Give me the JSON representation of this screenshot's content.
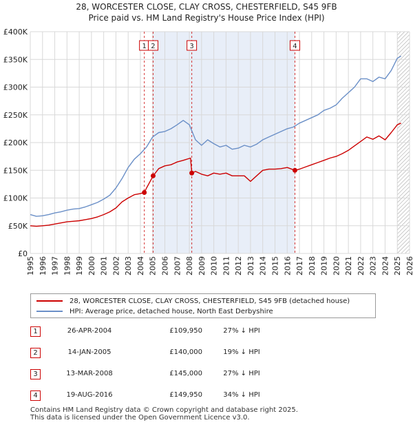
{
  "title_line1": "28, WORCESTER CLOSE, CLAY CROSS, CHESTERFIELD, S45 9FB",
  "title_line2": "Price paid vs. HM Land Registry's House Price Index (HPI)",
  "colors": {
    "property": "#cc0000",
    "hpi": "#6a8fc7",
    "shade": "#e8eef8",
    "marker": "#cc0000",
    "grid": "#d8d8d8"
  },
  "legend": {
    "property_label": "28, WORCESTER CLOSE, CLAY CROSS, CHESTERFIELD, S45 9FB (detached house)",
    "hpi_label": "HPI: Average price, detached house, North East Derbyshire"
  },
  "sales": [
    {
      "num": "1",
      "date": "26-APR-2004",
      "price": "£109,950",
      "hpi": "27% ↓ HPI"
    },
    {
      "num": "2",
      "date": "14-JAN-2005",
      "price": "£140,000",
      "hpi": "19% ↓ HPI"
    },
    {
      "num": "3",
      "date": "13-MAR-2008",
      "price": "£145,000",
      "hpi": "27% ↓ HPI"
    },
    {
      "num": "4",
      "date": "19-AUG-2016",
      "price": "£149,950",
      "hpi": "34% ↓ HPI"
    }
  ],
  "footer_line1": "Contains HM Land Registry data © Crown copyright and database right 2025.",
  "footer_line2": "This data is licensed under the Open Government Licence v3.0.",
  "chart_data": {
    "type": "line",
    "title": "Price paid vs. HM Land Registry's House Price Index (HPI)",
    "xlim": [
      1995,
      2026
    ],
    "ylim": [
      0,
      400000
    ],
    "x_ticks": [
      1995,
      1996,
      1997,
      1998,
      1999,
      2000,
      2001,
      2002,
      2003,
      2004,
      2005,
      2006,
      2007,
      2008,
      2009,
      2010,
      2011,
      2012,
      2013,
      2014,
      2015,
      2016,
      2017,
      2018,
      2019,
      2020,
      2021,
      2022,
      2023,
      2024,
      2025,
      2026
    ],
    "y_ticks": [
      {
        "value": 0,
        "label": "£0"
      },
      {
        "value": 50000,
        "label": "£50K"
      },
      {
        "value": 100000,
        "label": "£100K"
      },
      {
        "value": 150000,
        "label": "£150K"
      },
      {
        "value": 200000,
        "label": "£200K"
      },
      {
        "value": 250000,
        "label": "£250K"
      },
      {
        "value": 300000,
        "label": "£300K"
      },
      {
        "value": 350000,
        "label": "£350K"
      },
      {
        "value": 400000,
        "label": "£400K"
      }
    ],
    "shaded_period": [
      2005.04,
      2016.63
    ],
    "future_hatch_from": 2025.0,
    "sale_markers": [
      {
        "label": "1",
        "x": 2004.32,
        "y": 109950
      },
      {
        "label": "2",
        "x": 2005.04,
        "y": 140000
      },
      {
        "label": "3",
        "x": 2008.2,
        "y": 145000
      },
      {
        "label": "4",
        "x": 2016.63,
        "y": 149950
      }
    ],
    "series": [
      {
        "name": "HPI: Average price, detached house, North East Derbyshire",
        "x": [
          1995,
          1995.5,
          1996,
          1996.5,
          1997,
          1997.5,
          1998,
          1998.5,
          1999,
          1999.5,
          2000,
          2000.5,
          2001,
          2001.5,
          2002,
          2002.5,
          2003,
          2003.5,
          2004,
          2004.5,
          2005,
          2005.5,
          2006,
          2006.5,
          2007,
          2007.5,
          2008,
          2008.5,
          2009,
          2009.5,
          2010,
          2010.5,
          2011,
          2011.5,
          2012,
          2012.5,
          2013,
          2013.5,
          2014,
          2014.5,
          2015,
          2015.5,
          2016,
          2016.5,
          2017,
          2017.5,
          2018,
          2018.5,
          2019,
          2019.5,
          2020,
          2020.5,
          2021,
          2021.5,
          2022,
          2022.5,
          2023,
          2023.5,
          2024,
          2024.5,
          2025,
          2025.3
        ],
        "values": [
          70000,
          67000,
          68000,
          70000,
          73000,
          75000,
          78000,
          80000,
          81000,
          84000,
          88000,
          92000,
          98000,
          105000,
          118000,
          135000,
          155000,
          170000,
          180000,
          192000,
          210000,
          218000,
          220000,
          225000,
          232000,
          240000,
          232000,
          205000,
          195000,
          205000,
          198000,
          192000,
          195000,
          188000,
          190000,
          195000,
          192000,
          197000,
          205000,
          210000,
          215000,
          220000,
          225000,
          228000,
          235000,
          240000,
          245000,
          250000,
          258000,
          262000,
          268000,
          280000,
          290000,
          300000,
          315000,
          315000,
          310000,
          318000,
          315000,
          330000,
          352000,
          356000
        ]
      },
      {
        "name": "28, WORCESTER CLOSE, CLAY CROSS, CHESTERFIELD, S45 9FB (detached house)",
        "x": [
          1995,
          1995.5,
          1996,
          1996.5,
          1997,
          1997.5,
          1998,
          1998.5,
          1999,
          1999.5,
          2000,
          2000.5,
          2001,
          2001.5,
          2002,
          2002.5,
          2003,
          2003.5,
          2004,
          2004.32,
          2004.5,
          2005.04,
          2005.5,
          2006,
          2006.5,
          2007,
          2007.5,
          2008.1,
          2008.2,
          2008.5,
          2009,
          2009.5,
          2010,
          2010.5,
          2011,
          2011.5,
          2012,
          2012.5,
          2013,
          2013.5,
          2014,
          2014.5,
          2015,
          2015.5,
          2016,
          2016.63,
          2017,
          2017.5,
          2018,
          2018.5,
          2019,
          2019.5,
          2020,
          2020.5,
          2021,
          2021.5,
          2022,
          2022.5,
          2023,
          2023.5,
          2024,
          2024.5,
          2025,
          2025.3
        ],
        "values": [
          50000,
          49000,
          50000,
          51000,
          53000,
          55000,
          57000,
          58000,
          59000,
          61000,
          63000,
          66000,
          70000,
          75000,
          82000,
          93000,
          100000,
          106000,
          108000,
          109950,
          118000,
          140000,
          153000,
          158000,
          160000,
          165000,
          168000,
          172000,
          145000,
          148000,
          143000,
          140000,
          145000,
          143000,
          145000,
          140000,
          140000,
          140000,
          130000,
          140000,
          150000,
          152000,
          152000,
          153000,
          155000,
          149950,
          152000,
          156000,
          160000,
          164000,
          168000,
          172000,
          175000,
          180000,
          186000,
          194000,
          202000,
          210000,
          206000,
          212000,
          205000,
          218000,
          232000,
          235000
        ]
      }
    ]
  }
}
